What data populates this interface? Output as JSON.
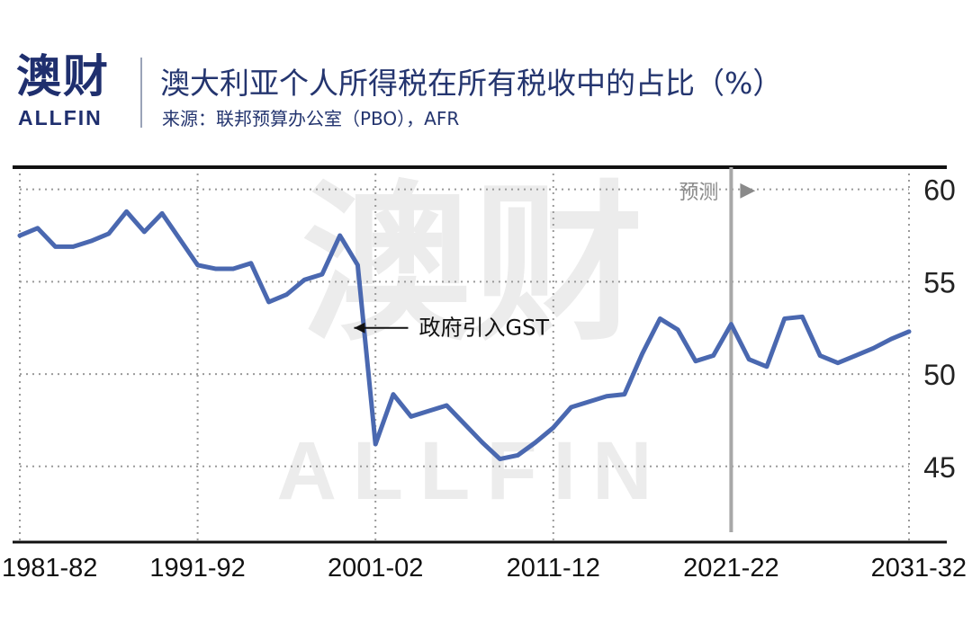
{
  "brand": {
    "name_zh": "澳财",
    "name_en": "ALLFIN",
    "accent": "#1f2f6e"
  },
  "header": {
    "title": "澳大利亚个人所得税在所有税收中的占比（%）",
    "subtitle": "来源：联邦预算办公室（PBO），AFR"
  },
  "chart_data": {
    "type": "line",
    "x": [
      1981.5,
      1982.5,
      1983.5,
      1984.5,
      1985.5,
      1986.5,
      1987.5,
      1988.5,
      1989.5,
      1990.5,
      1991.5,
      1992.5,
      1993.5,
      1994.5,
      1995.5,
      1996.5,
      1997.5,
      1998.5,
      1999.5,
      2000.5,
      2001.5,
      2002.5,
      2003.5,
      2004.5,
      2005.5,
      2006.5,
      2007.5,
      2008.5,
      2009.5,
      2010.5,
      2011.5,
      2012.5,
      2013.5,
      2014.5,
      2015.5,
      2016.5,
      2017.5,
      2018.5,
      2019.5,
      2020.5,
      2021.5,
      2022.5,
      2023.5,
      2024.5,
      2025.5,
      2026.5,
      2027.5,
      2028.5,
      2029.5,
      2030.5,
      2031.5
    ],
    "series": [
      {
        "color": "#4a68b0",
        "values": [
          57.5,
          57.9,
          56.9,
          56.9,
          57.2,
          57.6,
          58.8,
          57.7,
          58.7,
          57.3,
          55.9,
          55.7,
          55.7,
          56.0,
          53.9,
          54.3,
          55.1,
          55.4,
          57.5,
          55.9,
          46.2,
          48.9,
          47.7,
          48.0,
          48.3,
          47.3,
          46.3,
          45.4,
          45.6,
          46.3,
          47.1,
          48.2,
          48.5,
          48.8,
          48.9,
          51.1,
          53.0,
          52.4,
          50.7,
          51.0,
          52.7,
          50.8,
          50.4,
          53.0,
          53.1,
          51.0,
          50.6,
          51.0,
          51.4,
          51.9,
          52.3
        ]
      }
    ],
    "x_tick_labels": [
      "1981-82",
      "1991-92",
      "2001-02",
      "2011-12",
      "2021-22",
      "2031-32"
    ],
    "x_tick_values": [
      1981.5,
      1991.5,
      2001.5,
      2011.5,
      2021.5,
      2031.5
    ],
    "y_ticks": [
      45,
      50,
      55,
      60
    ],
    "ylim": [
      40.9,
      61.2
    ],
    "xlim": [
      1981.5,
      2031.5
    ],
    "grid": "dotted horizontal and vertical",
    "forecast": {
      "start": 2021.5,
      "label": "预测",
      "arrow": "▶"
    },
    "annotations": [
      {
        "x": 2000.3,
        "y": 52.5,
        "text": "政府引入GST"
      }
    ]
  },
  "watermark": {
    "zh": "澳财",
    "en": "ALLFIN"
  }
}
